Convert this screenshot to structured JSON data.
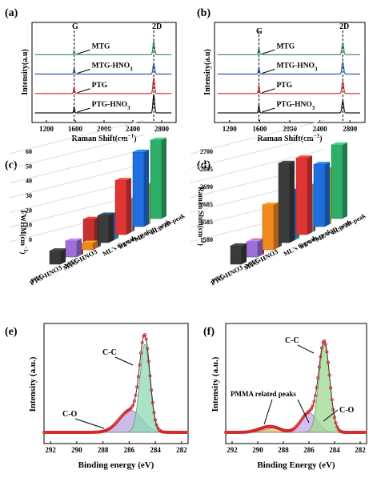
{
  "chart_data": [
    {
      "id": "a",
      "type": "line",
      "panel_label": "(a)",
      "xlabel": "Raman Shift(cm",
      "xlabel_sup": "−1",
      "xlabel_end": ")",
      "ylabel": "Intensity(a.u)",
      "xlim": [
        1000,
        3000
      ],
      "xticks": [
        1200,
        1600,
        2000,
        2400,
        2800
      ],
      "peak_labels": [
        "G",
        "2D"
      ],
      "peaks": {
        "G": 1585,
        "2D": 2690
      },
      "series": [
        {
          "name": "MTG",
          "color": "#2e8b57",
          "g_height": 0.3,
          "d2_height": 0.95
        },
        {
          "name": "MTG-HNO",
          "name_sub": "3",
          "color": "#2e5fa8",
          "g_height": 0.45,
          "d2_height": 0.75
        },
        {
          "name": "PTG",
          "color": "#d02828",
          "g_height": 0.5,
          "d2_height": 1.1
        },
        {
          "name": "PTG-HNO",
          "name_sub": "3",
          "color": "#1a1a1a",
          "g_height": 0.45,
          "d2_height": 1.3
        }
      ]
    },
    {
      "id": "b",
      "type": "line",
      "panel_label": "(b)",
      "xlabel": "Raman Shift(cm",
      "xlabel_sup": "−1",
      "xlabel_end": ")",
      "ylabel": "Intensity(a.u)",
      "xlim": [
        1000,
        3000
      ],
      "xticks": [
        1200,
        1600,
        2000,
        2400,
        2800
      ],
      "peak_labels": [
        "G",
        "2D"
      ],
      "peaks": {
        "G": 1590,
        "2D": 2705
      },
      "series": [
        {
          "name": "MTG",
          "color": "#2e8b57",
          "g_height": 0.55,
          "d2_height": 0.85
        },
        {
          "name": "MTG-HNO",
          "name_sub": "3",
          "color": "#2e5fa8",
          "g_height": 0.5,
          "d2_height": 0.85
        },
        {
          "name": "PTG",
          "color": "#d02828",
          "g_height": 0.6,
          "d2_height": 0.85
        },
        {
          "name": "PTG-HNO",
          "name_sub": "3",
          "color": "#1a1a1a",
          "g_height": 0.55,
          "d2_height": 0.85
        }
      ]
    },
    {
      "id": "c",
      "type": "bar",
      "panel_label": "(c)",
      "ylabel": "FWHM(cm",
      "ylabel_sup": "−1",
      "ylabel_end": ")",
      "yticks": [
        0,
        10,
        20,
        30,
        40,
        50,
        60
      ],
      "ylim": [
        0,
        65
      ],
      "categories": [
        "PTG",
        "PTG-HNO3",
        "MTG",
        "MTG-HNO3"
      ],
      "series_labels": [
        "ML's G-peak",
        "BL's G-peak",
        "ML's 2D-peak",
        "BL's 2D-peak"
      ],
      "values": [
        [
          10,
          12,
          5,
          20
        ],
        [
          8,
          22,
          20,
          40
        ],
        [
          18,
          15,
          25,
          55
        ],
        [
          12,
          16,
          30,
          58
        ]
      ],
      "colors": [
        [
          "#3a3a3a",
          "#9d6fd8",
          "#f08a1e",
          "#3b3b3b"
        ],
        [
          "#e83535",
          "#c93030",
          "#3b7be8",
          "#e03535"
        ],
        [
          "#1f7fe0",
          "#1cc6c6",
          "#8fb0e0",
          "#1f6fe0"
        ],
        [
          "#2fae6a",
          "#8a4a50",
          "#b3d935",
          "#2fae6a"
        ]
      ]
    },
    {
      "id": "d",
      "type": "bar",
      "panel_label": "(d)",
      "ylabel": "Raman Shift(cm",
      "ylabel_sup": "−1",
      "ylabel_end": ")",
      "yticks": [
        1580,
        1585,
        2685,
        2690,
        2695,
        2700
      ],
      "categories": [
        "PTG",
        "PTG-HNO3",
        "MTG",
        "MTG-HNO3"
      ],
      "series_labels": [
        "ML's G-peak",
        "BL's G-peak",
        "ML's 2D-peak",
        "BL's 2D-peak"
      ],
      "values": [
        [
          1584,
          1583,
          2688,
          2700
        ],
        [
          1583,
          1582,
          2690,
          2699
        ],
        [
          1582,
          1584,
          2689,
          2694
        ],
        [
          1583,
          1582,
          2692,
          2698
        ]
      ],
      "colors": [
        [
          "#3a3a3a",
          "#9d6fd8",
          "#f08a1e",
          "#3b3b3b"
        ],
        [
          "#e83535",
          "#c93030",
          "#3b7be8",
          "#e03535"
        ],
        [
          "#1f7fe0",
          "#1cc6c6",
          "#8fb0e0",
          "#1f6fe0"
        ],
        [
          "#2fae6a",
          "#8a4a50",
          "#b3d935",
          "#2fae6a"
        ]
      ]
    },
    {
      "id": "e",
      "type": "area",
      "panel_label": "(e)",
      "xlabel": "Binding energy (eV)",
      "ylabel": "Intensity (a.u.)",
      "xlim": [
        292.5,
        281.5
      ],
      "xticks": [
        292,
        290,
        288,
        286,
        284,
        282
      ],
      "components": [
        {
          "label": "C-C",
          "center": 284.8,
          "height": 1.0,
          "width": 0.55,
          "fill": "#8fd9b6"
        },
        {
          "label": "C-O",
          "center": 285.9,
          "height": 0.25,
          "width": 1.2,
          "fill": "#b9a5e0"
        }
      ],
      "data_color": "#e02020"
    },
    {
      "id": "f",
      "type": "area",
      "panel_label": "(f)",
      "xlabel": "Binding Energy (eV)",
      "ylabel": "Intensity (a.u.)",
      "xlim": [
        292.5,
        281.5
      ],
      "xticks": [
        292,
        290,
        288,
        286,
        284,
        282
      ],
      "annotations": [
        "PMMA related peaks"
      ],
      "components": [
        {
          "label": "C-C",
          "center": 284.8,
          "height": 1.0,
          "width": 0.6,
          "fill": "#9fd88f"
        },
        {
          "label": "C-O",
          "center": 286.0,
          "height": 0.22,
          "width": 0.9,
          "fill": "#c6a9e6"
        },
        {
          "label": "",
          "center": 288.8,
          "height": 0.05,
          "width": 0.9,
          "fill": "#f3c08a"
        },
        {
          "label": "",
          "center": 289.6,
          "height": 0.03,
          "width": 0.9,
          "fill": "#f7d7a7"
        }
      ],
      "data_color": "#e02020"
    }
  ]
}
